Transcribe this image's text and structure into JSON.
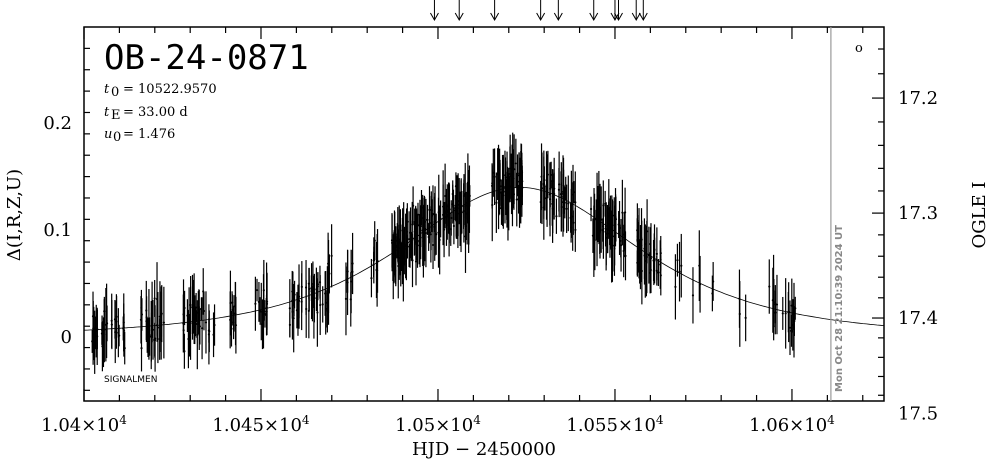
{
  "chart_data": {
    "type": "scatter",
    "title": "OB-24-0871",
    "params": [
      {
        "label": "t",
        "sub": "0",
        "value": "= 10522.9570"
      },
      {
        "label": "t",
        "sub": "E",
        "value": "= 33.00 d"
      },
      {
        "label": "u",
        "sub": "0",
        "value": "= 1.476"
      }
    ],
    "xlabel": "HJD − 2450000",
    "ylabel": "Δ(I,R,Z,U)",
    "ylabel_right": "OGLE I",
    "x_ticks": [
      {
        "x": 10400,
        "m": "1.04",
        "e": "4"
      },
      {
        "x": 10450,
        "m": "1.045",
        "e": "4"
      },
      {
        "x": 10500,
        "m": "1.05",
        "e": "4"
      },
      {
        "x": 10550,
        "m": "1.055",
        "e": "4"
      },
      {
        "x": 10600,
        "m": "1.06",
        "e": "4"
      }
    ],
    "y_ticks": [
      {
        "y": 0,
        "label": "0"
      },
      {
        "y": 0.1,
        "label": "0.1"
      },
      {
        "y": 0.2,
        "label": "0.2"
      }
    ],
    "y_right_ticks": [
      {
        "mag": 17.2,
        "label": "17.2"
      },
      {
        "mag": 17.3,
        "label": "17.3"
      },
      {
        "mag": 17.4,
        "label": "17.4"
      },
      {
        "mag": 17.5,
        "label": "17.5"
      }
    ],
    "xlim": [
      10400,
      10626
    ],
    "ylim": [
      -0.06,
      0.29
    ],
    "mag_base": 17.419,
    "model": {
      "t0": 10522.957,
      "tE": 33.0,
      "u0": 1.476,
      "amp_max": 0.14
    },
    "current_time_x": 10611,
    "timestamp": "Mon Oct 28 21:10:39 2024 UT",
    "footer_label": "SIGNALMEN",
    "arrows_x": [
      10499,
      10506,
      10516,
      10529,
      10534,
      10544,
      10550,
      10551,
      10556,
      10558
    ],
    "small_marker": "o",
    "grid": false,
    "legend": "none",
    "points": {
      "seed": 24871,
      "segments": [
        {
          "x0": 10402,
          "x1": 10412,
          "n": 35
        },
        {
          "x0": 10416,
          "x1": 10423,
          "n": 30
        },
        {
          "x0": 10428,
          "x1": 10437,
          "n": 35
        },
        {
          "x0": 10441,
          "x1": 10443,
          "n": 10
        },
        {
          "x0": 10448,
          "x1": 10452,
          "n": 15
        },
        {
          "x0": 10458,
          "x1": 10470,
          "n": 45
        },
        {
          "x0": 10474,
          "x1": 10476,
          "n": 8
        },
        {
          "x0": 10481,
          "x1": 10483,
          "n": 8
        },
        {
          "x0": 10487,
          "x1": 10509,
          "n": 140
        },
        {
          "x0": 10515,
          "x1": 10524,
          "n": 60
        },
        {
          "x0": 10529,
          "x1": 10539,
          "n": 50
        },
        {
          "x0": 10543,
          "x1": 10553,
          "n": 60
        },
        {
          "x0": 10556,
          "x1": 10563,
          "n": 40
        },
        {
          "x0": 10567,
          "x1": 10569,
          "n": 4
        },
        {
          "x0": 10572,
          "x1": 10578,
          "n": 5
        },
        {
          "x0": 10585,
          "x1": 10587,
          "n": 3
        },
        {
          "x0": 10593,
          "x1": 10601,
          "n": 20
        }
      ],
      "noise": 0.022,
      "err_min": 0.01,
      "err_max": 0.035
    }
  }
}
